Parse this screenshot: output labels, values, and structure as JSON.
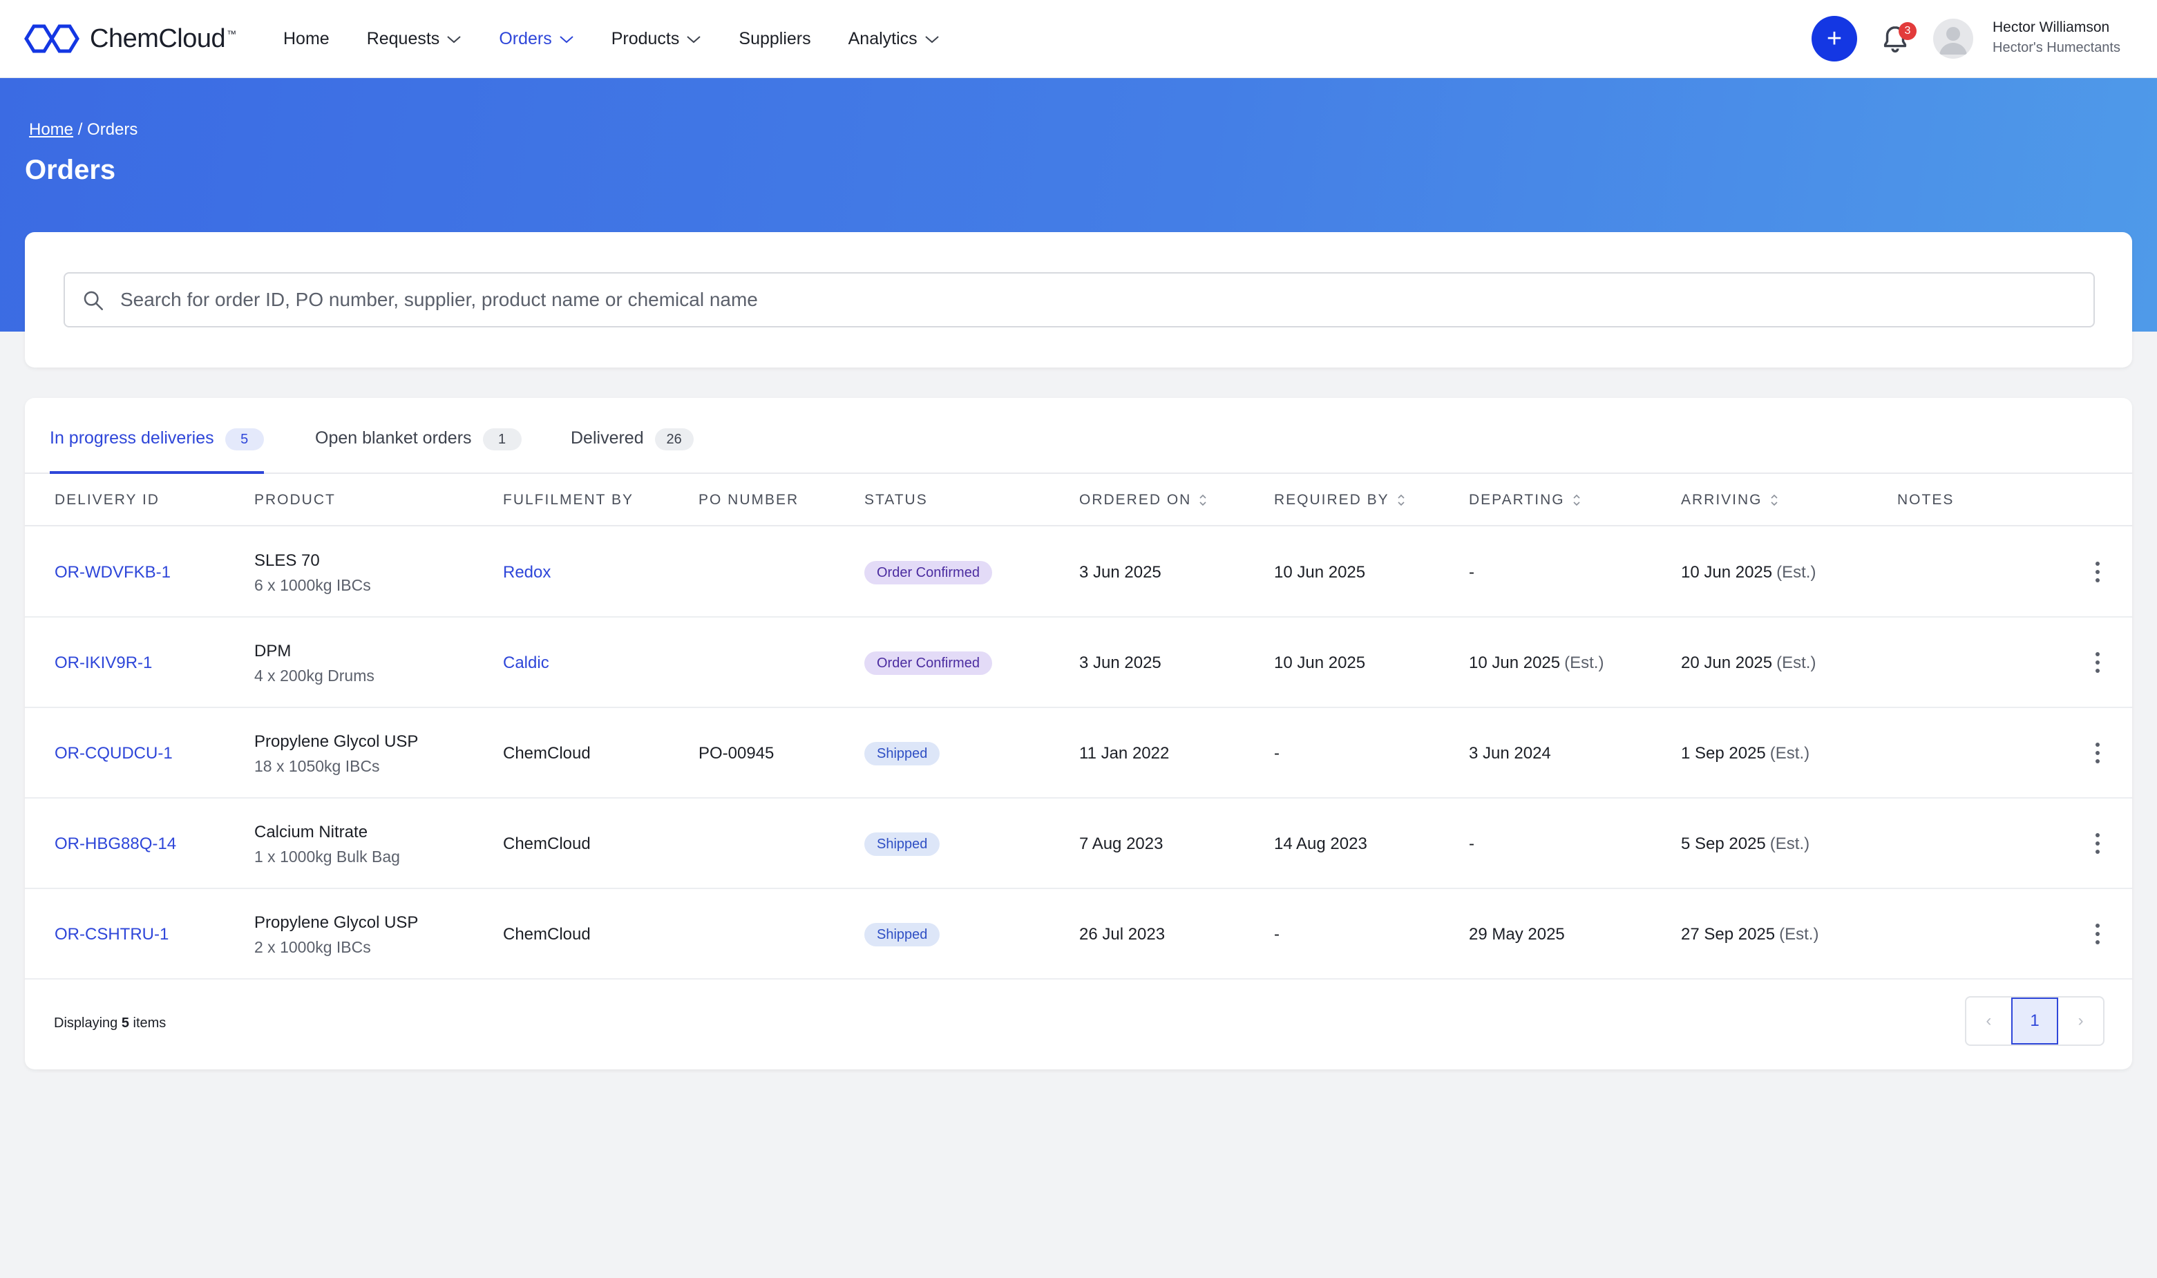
{
  "brand": {
    "name": "ChemCloud",
    "tm": "™",
    "color": "#1437e3"
  },
  "nav": {
    "items": [
      {
        "label": "Home",
        "dropdown": false,
        "active": false
      },
      {
        "label": "Requests",
        "dropdown": true,
        "active": false
      },
      {
        "label": "Orders",
        "dropdown": true,
        "active": true
      },
      {
        "label": "Products",
        "dropdown": true,
        "active": false
      },
      {
        "label": "Suppliers",
        "dropdown": false,
        "active": false
      },
      {
        "label": "Analytics",
        "dropdown": true,
        "active": false
      }
    ],
    "create_label": "+",
    "notifications_count": "3"
  },
  "user": {
    "name": "Hector Williamson",
    "company": "Hector's Humectants"
  },
  "breadcrumb": {
    "home": "Home",
    "separator": " / ",
    "current": "Orders"
  },
  "page": {
    "title": "Orders"
  },
  "search": {
    "placeholder": "Search for order ID, PO number, supplier, product name or chemical name",
    "value": ""
  },
  "tabs": [
    {
      "label": "In progress deliveries",
      "count": "5",
      "active": true
    },
    {
      "label": "Open blanket orders",
      "count": "1",
      "active": false
    },
    {
      "label": "Delivered",
      "count": "26",
      "active": false
    }
  ],
  "table": {
    "columns": {
      "delivery_id": "DELIVERY ID",
      "product": "PRODUCT",
      "fulfilment": "FULFILMENT BY",
      "po_number": "PO NUMBER",
      "status": "STATUS",
      "ordered_on": "ORDERED ON",
      "required_by": "REQUIRED BY",
      "departing": "DEPARTING",
      "arriving": "ARRIVING",
      "notes": "NOTES"
    },
    "rows": [
      {
        "id": "OR-WDVFKB-1",
        "product": "SLES 70",
        "qty": "6 x 1000kg IBCs",
        "fulfilment": "Redox",
        "fulfilment_link": true,
        "po": "",
        "status": "Order Confirmed",
        "status_type": "confirmed",
        "ordered_on": "3 Jun 2025",
        "required_by": "10 Jun 2025",
        "departing": "-",
        "departing_est": "",
        "arriving": "10 Jun 2025",
        "arriving_est": "(Est.)",
        "notes": ""
      },
      {
        "id": "OR-IKIV9R-1",
        "product": "DPM",
        "qty": "4 x 200kg Drums",
        "fulfilment": "Caldic",
        "fulfilment_link": true,
        "po": "",
        "status": "Order Confirmed",
        "status_type": "confirmed",
        "ordered_on": "3 Jun 2025",
        "required_by": "10 Jun 2025",
        "departing": "10 Jun 2025",
        "departing_est": "(Est.)",
        "arriving": "20 Jun 2025",
        "arriving_est": "(Est.)",
        "notes": ""
      },
      {
        "id": "OR-CQUDCU-1",
        "product": "Propylene Glycol USP",
        "qty": "18 x 1050kg IBCs",
        "fulfilment": "ChemCloud",
        "fulfilment_link": false,
        "po": "PO-00945",
        "status": "Shipped",
        "status_type": "shipped",
        "ordered_on": "11 Jan 2022",
        "required_by": "-",
        "departing": "3 Jun 2024",
        "departing_est": "",
        "arriving": "1 Sep 2025",
        "arriving_est": "(Est.)",
        "notes": ""
      },
      {
        "id": "OR-HBG88Q-14",
        "product": "Calcium Nitrate",
        "qty": "1 x 1000kg Bulk Bag",
        "fulfilment": "ChemCloud",
        "fulfilment_link": false,
        "po": "",
        "status": "Shipped",
        "status_type": "shipped",
        "ordered_on": "7 Aug 2023",
        "required_by": "14 Aug 2023",
        "departing": "-",
        "departing_est": "",
        "arriving": "5 Sep 2025",
        "arriving_est": "(Est.)",
        "notes": ""
      },
      {
        "id": "OR-CSHTRU-1",
        "product": "Propylene Glycol USP",
        "qty": "2 x 1000kg IBCs",
        "fulfilment": "ChemCloud",
        "fulfilment_link": false,
        "po": "",
        "status": "Shipped",
        "status_type": "shipped",
        "ordered_on": "26 Jul 2023",
        "required_by": "-",
        "departing": "29 May 2025",
        "departing_est": "",
        "arriving": "27 Sep 2025",
        "arriving_est": "(Est.)",
        "notes": ""
      }
    ]
  },
  "footer": {
    "prefix": "Displaying",
    "count": "5",
    "suffix": "items"
  },
  "pagination": {
    "prev": "‹",
    "current": "1",
    "next": "›"
  }
}
